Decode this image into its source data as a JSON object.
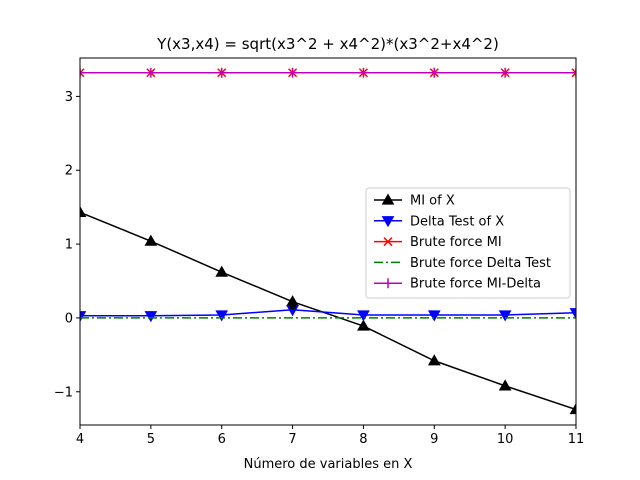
{
  "chart_data": {
    "type": "line",
    "title": "Y(x3,x4) = sqrt(x3^2 + x4^2)*(x3^2+x4^2)",
    "xlabel": "Número de variables en X",
    "ylabel": "",
    "x": [
      4,
      5,
      6,
      7,
      8,
      9,
      10,
      11
    ],
    "xlim": [
      4,
      11
    ],
    "ylim": [
      -1.45,
      3.52
    ],
    "xticks": [
      4,
      5,
      6,
      7,
      8,
      9,
      10,
      11
    ],
    "yticks": [
      -1,
      0,
      1,
      2,
      3
    ],
    "ytick_labels": [
      "−1",
      "0",
      "1",
      "2",
      "3"
    ],
    "grid": false,
    "legend_position": "center-right",
    "series": [
      {
        "name": "MI of X",
        "color": "#000000",
        "linestyle": "solid",
        "marker": "triangle-up",
        "values": [
          1.43,
          1.04,
          0.62,
          0.22,
          -0.11,
          -0.58,
          -0.92,
          -1.24
        ]
      },
      {
        "name": "Delta Test of X",
        "color": "#0000ff",
        "linestyle": "solid",
        "marker": "triangle-down",
        "values": [
          0.03,
          0.03,
          0.04,
          0.11,
          0.04,
          0.04,
          0.04,
          0.07
        ]
      },
      {
        "name": "Brute force MI",
        "color": "#ff0000",
        "linestyle": "solid",
        "marker": "x",
        "values": [
          3.32,
          3.32,
          3.32,
          3.32,
          3.32,
          3.32,
          3.32,
          3.32
        ]
      },
      {
        "name": "Brute force Delta Test",
        "color": "#008000",
        "linestyle": "dashdot",
        "marker": "none",
        "values": [
          0.0,
          0.0,
          0.0,
          0.0,
          0.0,
          0.0,
          0.0,
          0.0
        ]
      },
      {
        "name": "Brute force MI-Delta",
        "color": "#bf00bf",
        "linestyle": "solid",
        "marker": "plus",
        "values": [
          3.32,
          3.32,
          3.32,
          3.32,
          3.32,
          3.32,
          3.32,
          3.32
        ]
      }
    ],
    "annotations": [
      {
        "type": "point",
        "x": 7,
        "y": 0.16,
        "color": "#000000"
      }
    ]
  }
}
